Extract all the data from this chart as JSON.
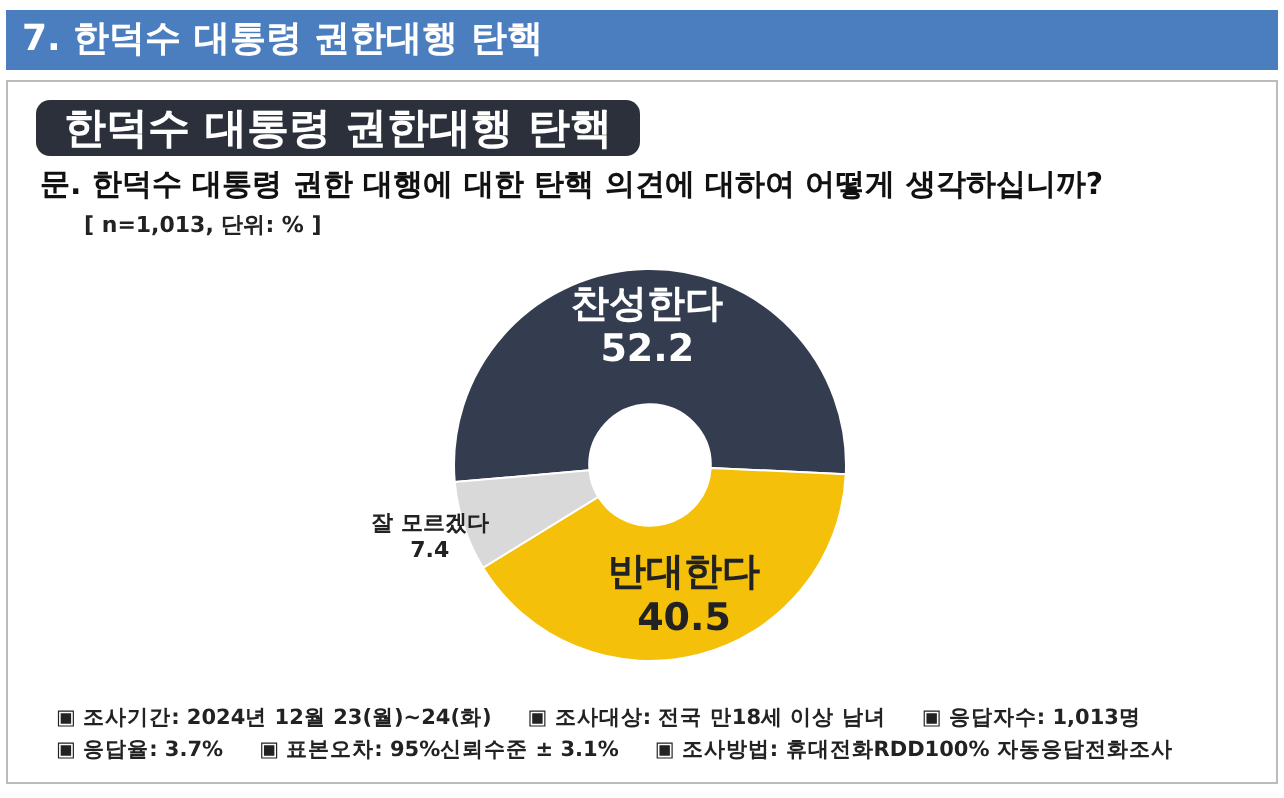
{
  "chart_data": {
    "type": "donut",
    "title": "7. 한덕수 대통령 권한대행 탄핵",
    "subtitle": "한덕수 대통령 권한대행 탄핵",
    "categories": [
      "찬성한다",
      "반대한다",
      "잘 모르겠다"
    ],
    "values": [
      52.2,
      40.5,
      7.4
    ],
    "colors": [
      "#333d4f",
      "#f5c00a",
      "#d9d9d9"
    ],
    "data_labels": true,
    "legend": false,
    "annotations": [
      "문. 한덕수 대통령 권한 대행에 대한 탄핵 의견에 대하여 어떻게 생각하십니까?",
      "[ n=1,013, 단위: % ]",
      "▣ 조사기간: 2024년 12월 23(월)~24(화)",
      "▣ 조사대상: 전국 만18세 이상 남녀",
      "▣ 응답자수: 1,013명",
      "▣ 응답율: 3.7%",
      "▣ 표본오차: 95%신뢰수준 ± 3.1%",
      "▣ 조사방법: 휴대전화RDD100% 자동응답전화조사"
    ]
  }
}
